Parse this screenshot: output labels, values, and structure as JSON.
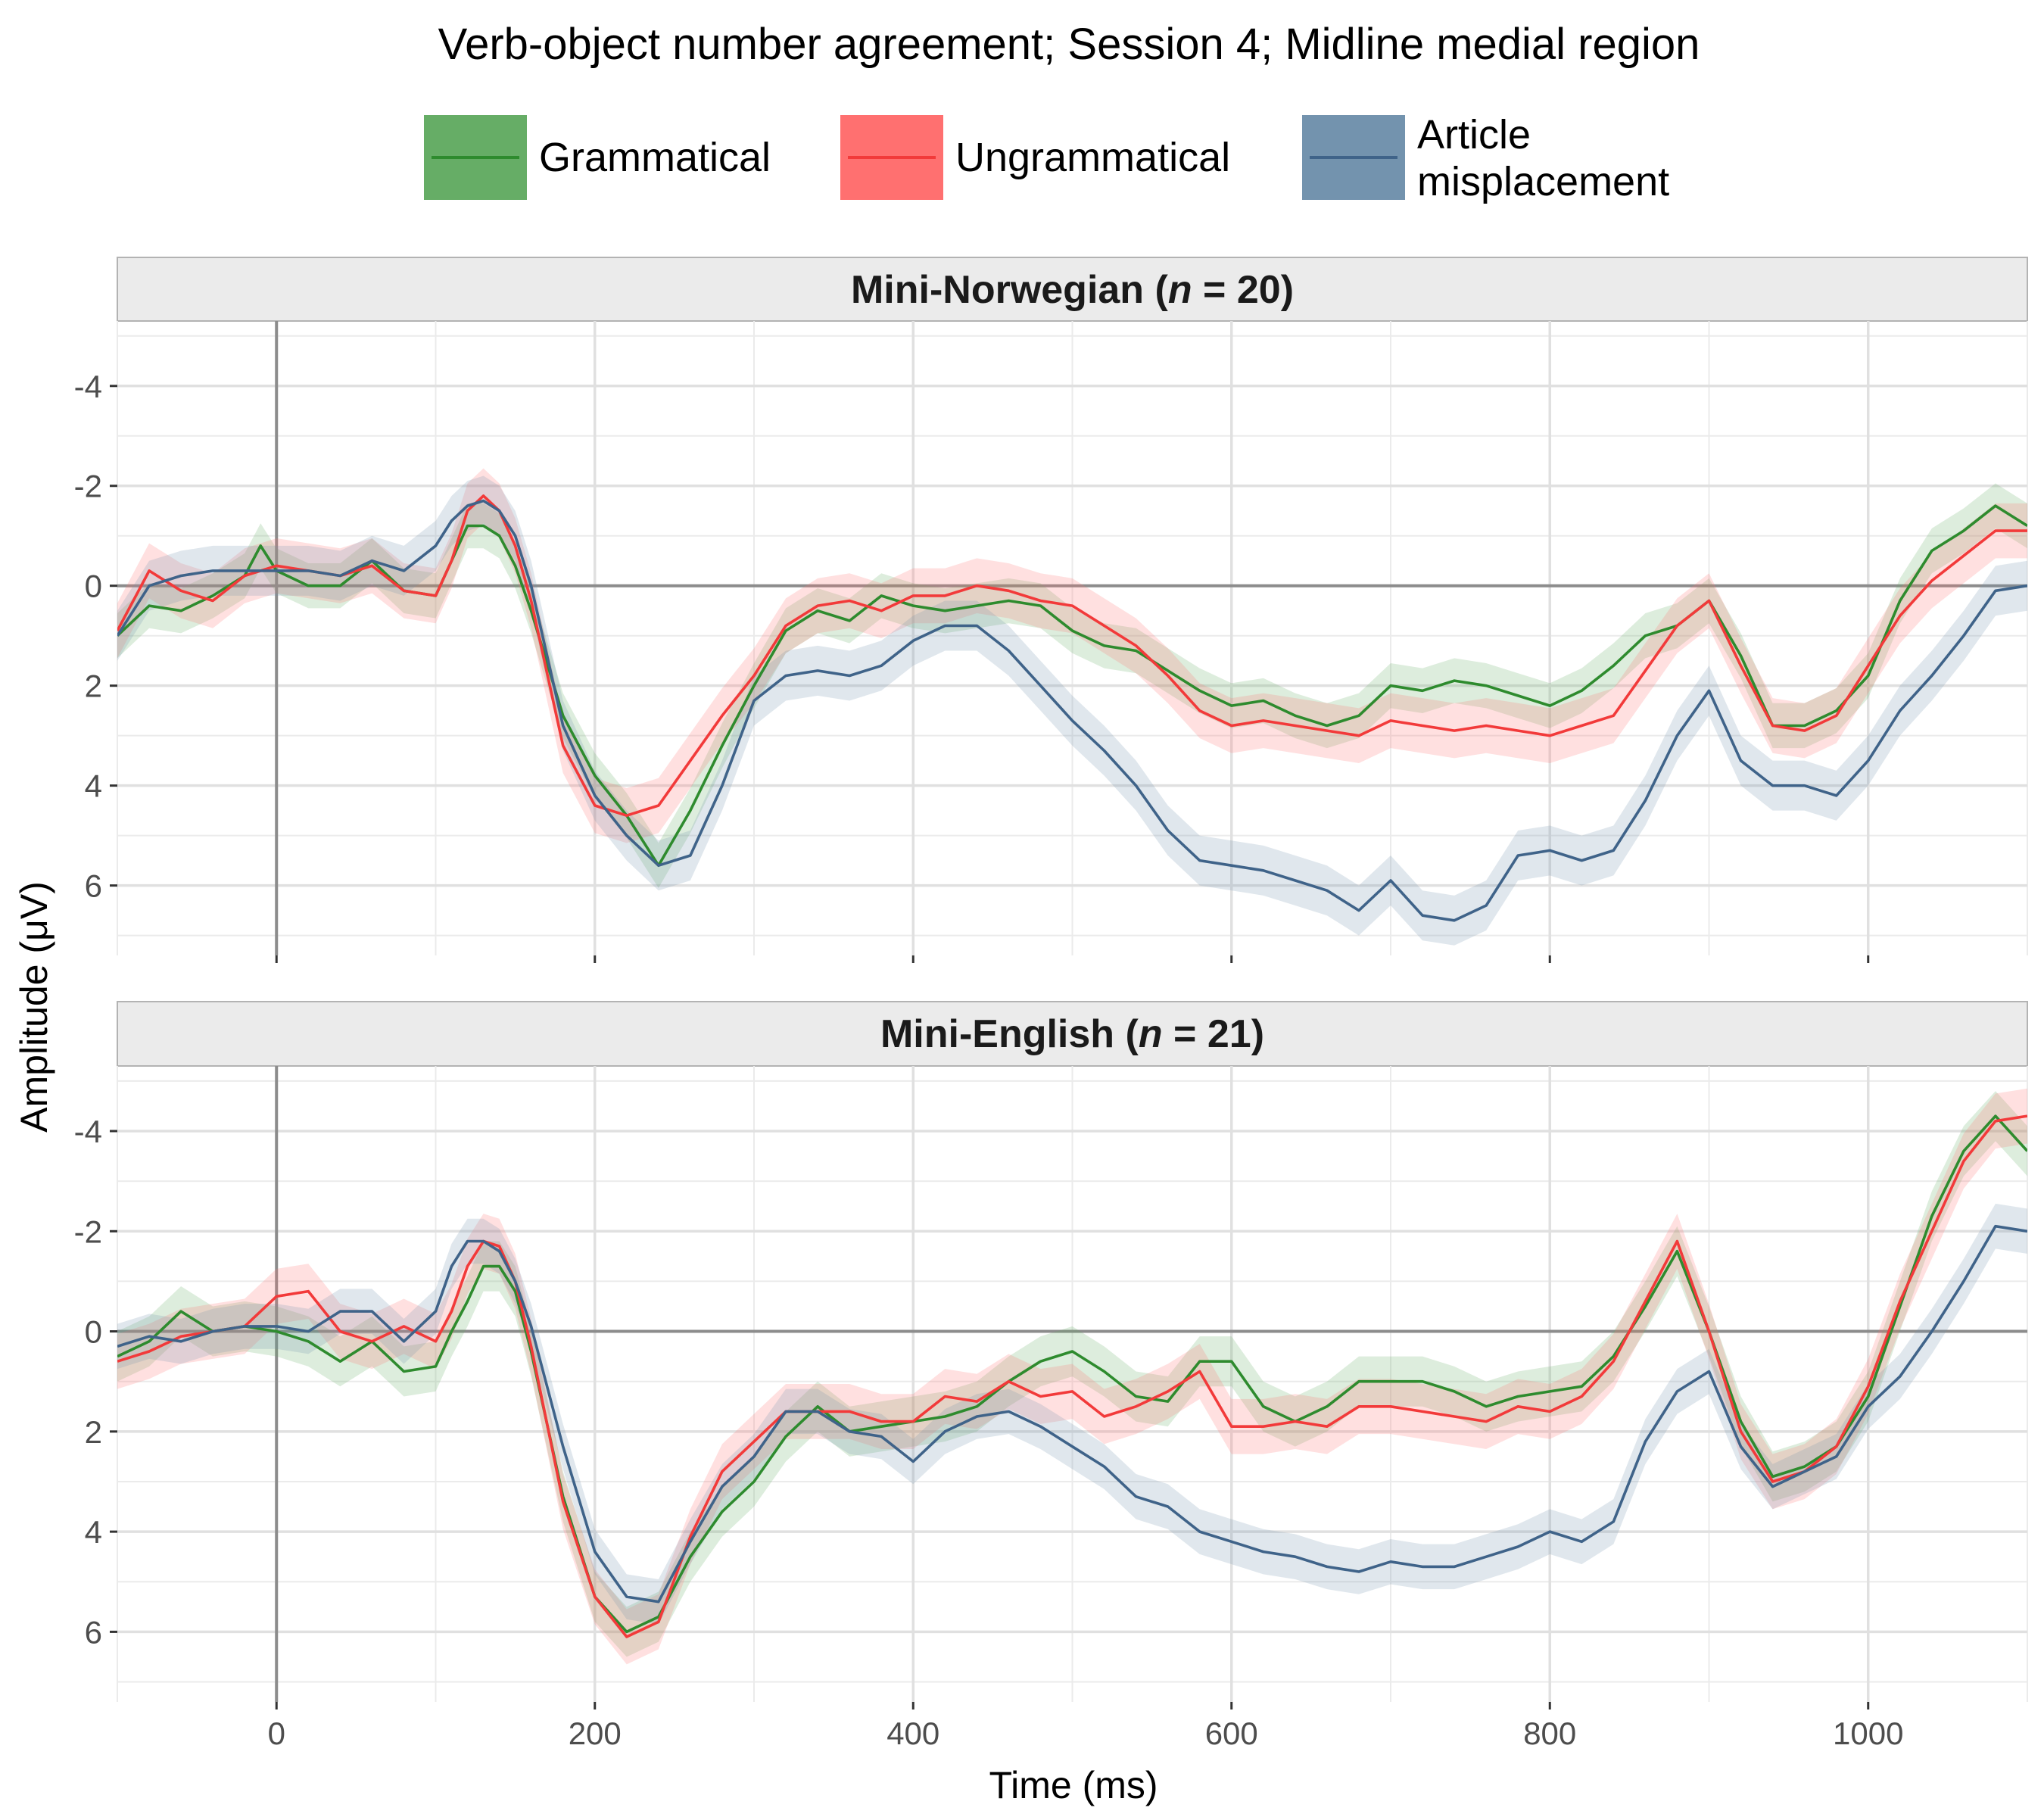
{
  "chart_data": {
    "type": "line",
    "title": "Verb-object number agreement; Session 4; Midline medial region",
    "xlabel": "Time (ms)",
    "ylabel": "Amplitude (μV)",
    "x_ticks": [
      0,
      200,
      400,
      600,
      800,
      1000
    ],
    "y_ticks": [
      -4,
      -2,
      0,
      2,
      4,
      6
    ],
    "xlim": [
      -100,
      1100
    ],
    "ylim": [
      -5.3,
      7.4
    ],
    "y_axis_reversed": true,
    "grid": true,
    "legend_position": "top",
    "legend": [
      {
        "key": "gram",
        "label": "Grammatical",
        "color": "#2e8b2e",
        "fill": "#66ad66"
      },
      {
        "key": "ungram",
        "label": "Ungrammatical",
        "color": "#f23a3a",
        "fill": "#ff7070"
      },
      {
        "key": "artmis",
        "label": "Article\nmisplacement",
        "color": "#3f6389",
        "fill": "#7393ae"
      }
    ],
    "panels": [
      {
        "title_prefix": "Mini-Norwegian (",
        "n_symbol": "n",
        "title_suffix": " = 20)",
        "series": [
          {
            "key": "gram",
            "x": [
              -100,
              -80,
              -60,
              -40,
              -20,
              -10,
              0,
              20,
              40,
              60,
              80,
              100,
              110,
              120,
              130,
              140,
              150,
              160,
              180,
              200,
              220,
              240,
              260,
              280,
              300,
              320,
              340,
              360,
              380,
              400,
              420,
              440,
              460,
              480,
              500,
              520,
              540,
              560,
              580,
              600,
              620,
              640,
              660,
              680,
              700,
              720,
              740,
              760,
              780,
              800,
              820,
              840,
              860,
              880,
              900,
              920,
              940,
              960,
              980,
              1000,
              1020,
              1040,
              1060,
              1080,
              1100
            ],
            "y": [
              1.0,
              0.4,
              0.5,
              0.2,
              -0.2,
              -0.8,
              -0.3,
              0.0,
              0.0,
              -0.5,
              0.1,
              0.2,
              -0.5,
              -1.2,
              -1.2,
              -1.0,
              -0.4,
              0.5,
              2.6,
              3.8,
              4.6,
              5.6,
              4.5,
              3.2,
              2.0,
              0.9,
              0.5,
              0.7,
              0.2,
              0.4,
              0.5,
              0.4,
              0.3,
              0.4,
              0.9,
              1.2,
              1.3,
              1.7,
              2.1,
              2.4,
              2.3,
              2.6,
              2.8,
              2.6,
              2.0,
              2.1,
              1.9,
              2.0,
              2.2,
              2.4,
              2.1,
              1.6,
              1.0,
              0.8,
              0.3,
              1.4,
              2.8,
              2.8,
              2.5,
              1.8,
              0.3,
              -0.7,
              -1.1,
              -1.6,
              -1.2
            ],
            "band": 0.45
          },
          {
            "key": "ungram",
            "x": [
              -100,
              -80,
              -60,
              -40,
              -20,
              0,
              20,
              40,
              60,
              80,
              100,
              110,
              120,
              130,
              140,
              150,
              160,
              180,
              200,
              220,
              240,
              260,
              280,
              300,
              320,
              340,
              360,
              380,
              400,
              420,
              440,
              460,
              480,
              500,
              520,
              540,
              560,
              580,
              600,
              620,
              640,
              660,
              680,
              700,
              720,
              740,
              760,
              780,
              800,
              820,
              840,
              860,
              880,
              900,
              920,
              940,
              960,
              980,
              1000,
              1020,
              1040,
              1060,
              1080,
              1100
            ],
            "y": [
              0.9,
              -0.3,
              0.1,
              0.3,
              -0.2,
              -0.4,
              -0.3,
              -0.2,
              -0.4,
              0.1,
              0.2,
              -0.5,
              -1.5,
              -1.8,
              -1.5,
              -0.8,
              0.3,
              3.2,
              4.4,
              4.6,
              4.4,
              3.5,
              2.6,
              1.8,
              0.8,
              0.4,
              0.3,
              0.5,
              0.2,
              0.2,
              0.0,
              0.1,
              0.3,
              0.4,
              0.8,
              1.2,
              1.8,
              2.5,
              2.8,
              2.7,
              2.8,
              2.9,
              3.0,
              2.7,
              2.8,
              2.9,
              2.8,
              2.9,
              3.0,
              2.8,
              2.6,
              1.7,
              0.8,
              0.3,
              1.6,
              2.8,
              2.9,
              2.6,
              1.6,
              0.6,
              -0.1,
              -0.6,
              -1.1,
              -1.1
            ],
            "band": 0.55
          },
          {
            "key": "artmis",
            "x": [
              -100,
              -80,
              -60,
              -40,
              -20,
              0,
              20,
              40,
              60,
              80,
              100,
              110,
              120,
              130,
              140,
              150,
              160,
              180,
              200,
              220,
              240,
              260,
              280,
              300,
              320,
              340,
              360,
              380,
              400,
              420,
              440,
              460,
              480,
              500,
              520,
              540,
              560,
              580,
              600,
              620,
              640,
              660,
              680,
              700,
              720,
              740,
              760,
              780,
              800,
              820,
              840,
              860,
              880,
              900,
              920,
              940,
              960,
              980,
              1000,
              1020,
              1040,
              1060,
              1080,
              1100
            ],
            "y": [
              1.0,
              0.0,
              -0.2,
              -0.3,
              -0.3,
              -0.3,
              -0.3,
              -0.2,
              -0.5,
              -0.3,
              -0.8,
              -1.3,
              -1.6,
              -1.7,
              -1.5,
              -1.0,
              0.0,
              2.8,
              4.2,
              5.0,
              5.6,
              5.4,
              4.0,
              2.3,
              1.8,
              1.7,
              1.8,
              1.6,
              1.1,
              0.8,
              0.8,
              1.3,
              2.0,
              2.7,
              3.3,
              4.0,
              4.9,
              5.5,
              5.6,
              5.7,
              5.9,
              6.1,
              6.5,
              5.9,
              6.6,
              6.7,
              6.4,
              5.4,
              5.3,
              5.5,
              5.3,
              4.3,
              3.0,
              2.1,
              3.5,
              4.0,
              4.0,
              4.2,
              3.5,
              2.5,
              1.8,
              1.0,
              0.1,
              0.0
            ],
            "band": 0.5
          }
        ]
      },
      {
        "title_prefix": "Mini-English (",
        "n_symbol": "n",
        "title_suffix": " = 21)",
        "series": [
          {
            "key": "gram",
            "x": [
              -100,
              -80,
              -60,
              -40,
              -20,
              0,
              20,
              40,
              60,
              80,
              100,
              110,
              120,
              130,
              140,
              150,
              160,
              180,
              200,
              220,
              240,
              260,
              280,
              300,
              320,
              340,
              360,
              380,
              400,
              420,
              440,
              460,
              480,
              500,
              520,
              540,
              560,
              580,
              600,
              620,
              640,
              660,
              680,
              700,
              720,
              740,
              760,
              780,
              800,
              820,
              840,
              860,
              880,
              900,
              920,
              940,
              960,
              980,
              1000,
              1020,
              1040,
              1060,
              1080,
              1100
            ],
            "y": [
              0.5,
              0.2,
              -0.4,
              0.0,
              -0.1,
              0.0,
              0.2,
              0.6,
              0.2,
              0.8,
              0.7,
              0.0,
              -0.6,
              -1.3,
              -1.3,
              -0.8,
              0.4,
              3.3,
              5.3,
              6.0,
              5.7,
              4.5,
              3.6,
              3.0,
              2.1,
              1.5,
              2.0,
              1.9,
              1.8,
              1.7,
              1.5,
              1.0,
              0.6,
              0.4,
              0.8,
              1.3,
              1.4,
              0.6,
              0.6,
              1.5,
              1.8,
              1.5,
              1.0,
              1.0,
              1.0,
              1.2,
              1.5,
              1.3,
              1.2,
              1.1,
              0.5,
              -0.5,
              -1.6,
              0.0,
              1.8,
              2.9,
              2.7,
              2.3,
              1.3,
              -0.5,
              -2.3,
              -3.6,
              -4.3,
              -3.6
            ],
            "band": 0.5
          },
          {
            "key": "ungram",
            "x": [
              -100,
              -80,
              -60,
              -40,
              -20,
              0,
              20,
              40,
              60,
              80,
              100,
              110,
              120,
              130,
              140,
              150,
              160,
              180,
              200,
              220,
              240,
              260,
              280,
              300,
              320,
              340,
              360,
              380,
              400,
              420,
              440,
              460,
              480,
              500,
              520,
              540,
              560,
              580,
              600,
              620,
              640,
              660,
              680,
              700,
              720,
              740,
              760,
              780,
              800,
              820,
              840,
              860,
              880,
              900,
              920,
              940,
              960,
              980,
              1000,
              1020,
              1040,
              1060,
              1080,
              1100
            ],
            "y": [
              0.6,
              0.4,
              0.1,
              0.0,
              -0.1,
              -0.7,
              -0.8,
              0.0,
              0.2,
              -0.1,
              0.2,
              -0.4,
              -1.3,
              -1.8,
              -1.7,
              -1.0,
              0.3,
              3.4,
              5.3,
              6.1,
              5.8,
              4.1,
              2.8,
              2.2,
              1.6,
              1.6,
              1.6,
              1.8,
              1.8,
              1.3,
              1.4,
              1.0,
              1.3,
              1.2,
              1.7,
              1.5,
              1.2,
              0.8,
              1.9,
              1.9,
              1.8,
              1.9,
              1.5,
              1.5,
              1.6,
              1.7,
              1.8,
              1.5,
              1.6,
              1.3,
              0.6,
              -0.6,
              -1.8,
              0.0,
              2.0,
              3.0,
              2.8,
              2.3,
              1.1,
              -0.6,
              -2.0,
              -3.4,
              -4.2,
              -4.3
            ],
            "band": 0.55
          },
          {
            "key": "artmis",
            "x": [
              -100,
              -80,
              -60,
              -40,
              -20,
              0,
              20,
              40,
              60,
              80,
              100,
              110,
              120,
              130,
              140,
              150,
              160,
              180,
              200,
              220,
              240,
              260,
              280,
              300,
              320,
              340,
              360,
              380,
              400,
              420,
              440,
              460,
              480,
              500,
              520,
              540,
              560,
              580,
              600,
              620,
              640,
              660,
              680,
              700,
              720,
              740,
              760,
              780,
              800,
              820,
              840,
              860,
              880,
              900,
              920,
              940,
              960,
              980,
              1000,
              1020,
              1040,
              1060,
              1080,
              1100
            ],
            "y": [
              0.3,
              0.1,
              0.2,
              0.0,
              -0.1,
              -0.1,
              0.0,
              -0.4,
              -0.4,
              0.2,
              -0.4,
              -1.3,
              -1.8,
              -1.8,
              -1.6,
              -1.0,
              -0.1,
              2.3,
              4.4,
              5.3,
              5.4,
              4.2,
              3.1,
              2.5,
              1.6,
              1.6,
              2.0,
              2.1,
              2.6,
              2.0,
              1.7,
              1.6,
              1.9,
              2.3,
              2.7,
              3.3,
              3.5,
              4.0,
              4.2,
              4.4,
              4.5,
              4.7,
              4.8,
              4.6,
              4.7,
              4.7,
              4.5,
              4.3,
              4.0,
              4.2,
              3.8,
              2.2,
              1.2,
              0.8,
              2.3,
              3.1,
              2.8,
              2.5,
              1.5,
              0.9,
              0.0,
              -1.0,
              -2.1,
              -2.0
            ],
            "band": 0.45
          }
        ]
      }
    ]
  }
}
